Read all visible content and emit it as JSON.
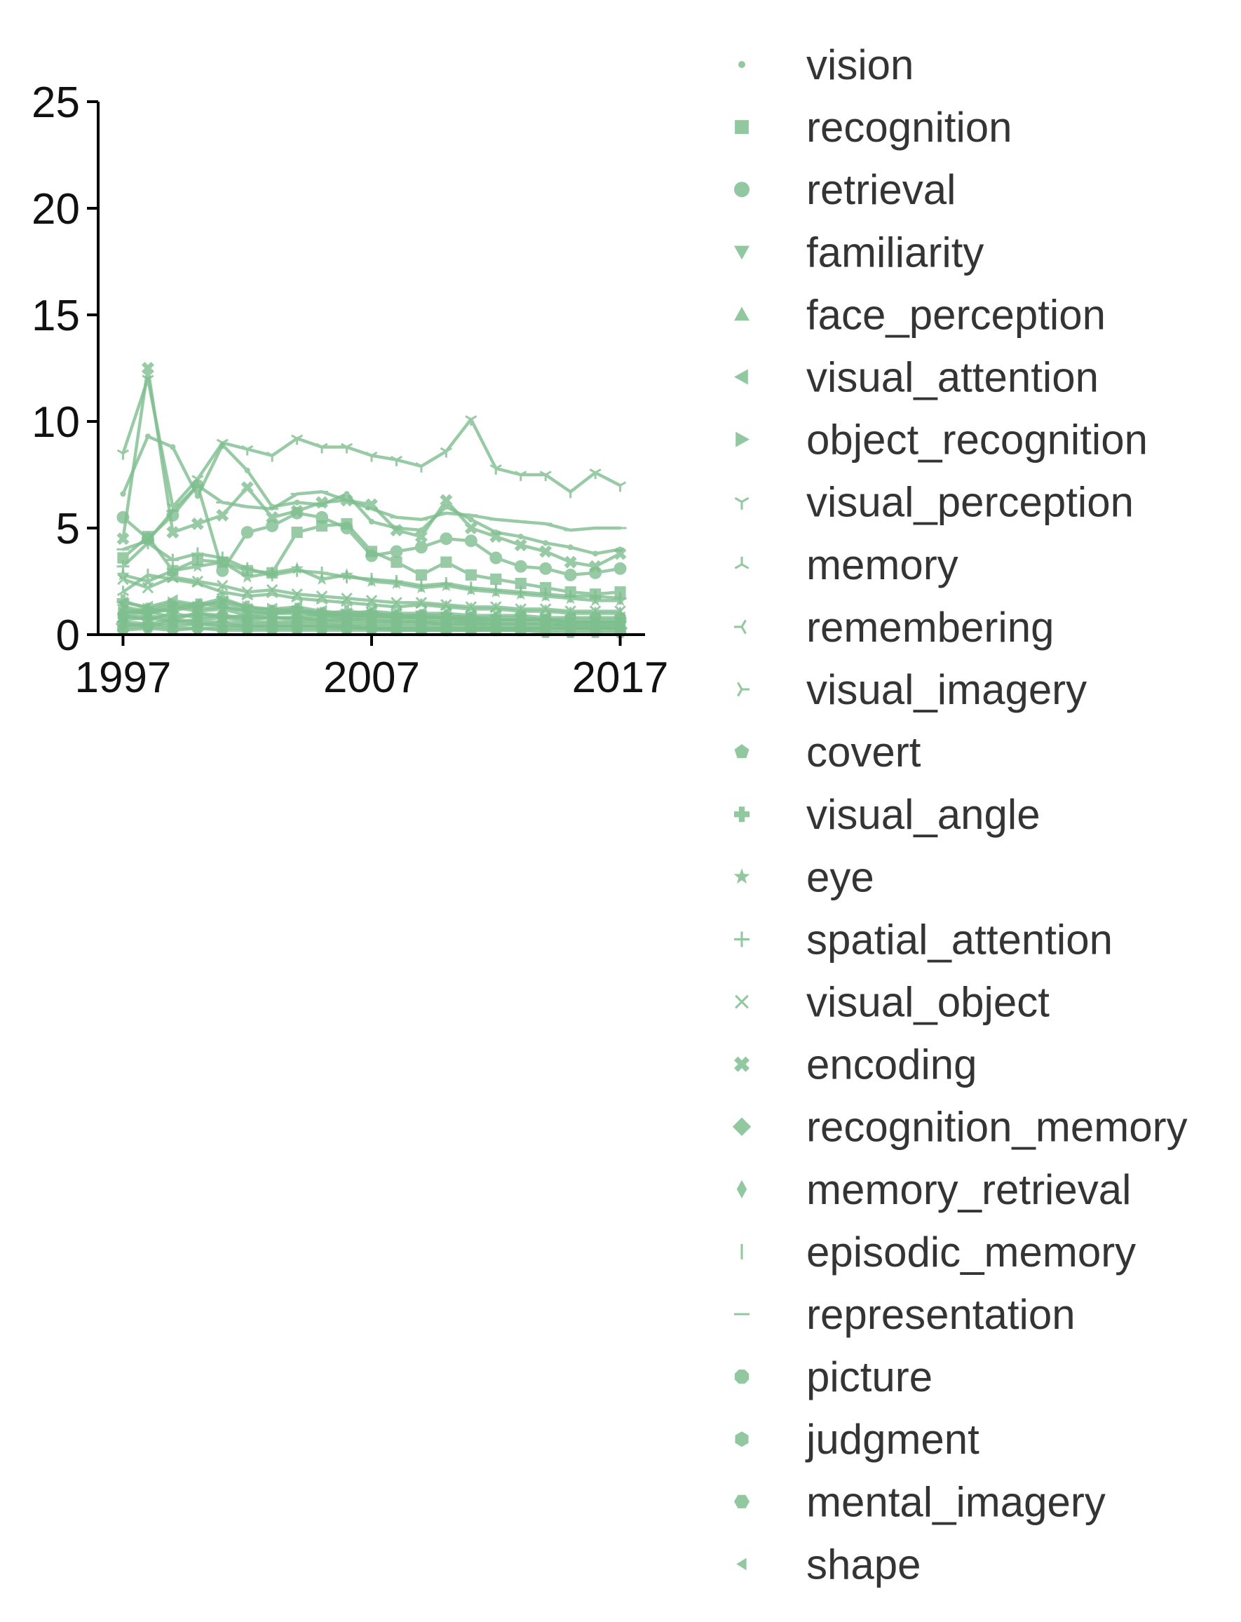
{
  "chart_data": {
    "type": "line",
    "title": "",
    "xlabel": "",
    "ylabel": "",
    "xlim": [
      1996,
      2018
    ],
    "ylim": [
      0,
      25
    ],
    "x_ticks": [
      1997,
      2007,
      2017
    ],
    "y_ticks": [
      0,
      5,
      10,
      15,
      20,
      25
    ],
    "grid": false,
    "legend_position": "right",
    "series_color": "#7fbf8f",
    "x": [
      1997,
      1998,
      1999,
      2000,
      2001,
      2002,
      2003,
      2004,
      2005,
      2006,
      2007,
      2008,
      2009,
      2010,
      2011,
      2012,
      2013,
      2014,
      2015,
      2016,
      2017
    ],
    "series": [
      {
        "name": "vision",
        "marker": "point",
        "values": [
          6.6,
          9.3,
          8.8,
          6.5,
          8.9,
          7.7,
          6.0,
          6.2,
          6.1,
          6.6,
          5.3,
          5.0,
          4.9,
          6.0,
          5.4,
          4.8,
          4.6,
          4.3,
          4.1,
          3.8,
          4.0
        ]
      },
      {
        "name": "recognition",
        "marker": "square",
        "values": [
          3.6,
          4.6,
          3.0,
          3.5,
          3.4,
          3.0,
          2.9,
          4.8,
          5.1,
          5.2,
          3.9,
          3.4,
          2.8,
          3.4,
          2.8,
          2.6,
          2.4,
          2.2,
          2.0,
          1.9,
          2.0
        ]
      },
      {
        "name": "retrieval",
        "marker": "circle",
        "values": [
          5.5,
          4.5,
          5.6,
          7.0,
          3.0,
          4.8,
          5.1,
          5.7,
          5.5,
          5.0,
          3.7,
          3.9,
          4.1,
          4.5,
          4.4,
          3.6,
          3.2,
          3.1,
          2.8,
          2.9,
          3.1
        ]
      },
      {
        "name": "familiarity",
        "marker": "triangle-down",
        "values": [
          1.2,
          1.0,
          1.3,
          1.1,
          1.2,
          0.9,
          1.0,
          1.1,
          0.9,
          0.8,
          0.9,
          0.8,
          0.9,
          0.8,
          0.8,
          0.7,
          0.7,
          0.7,
          0.6,
          0.6,
          0.6
        ]
      },
      {
        "name": "face_perception",
        "marker": "triangle-up",
        "values": [
          0.8,
          0.9,
          0.7,
          1.0,
          0.8,
          0.9,
          0.8,
          0.8,
          0.9,
          0.7,
          0.8,
          0.7,
          0.7,
          0.7,
          0.6,
          0.6,
          0.6,
          0.6,
          0.5,
          0.5,
          0.5
        ]
      },
      {
        "name": "visual_attention",
        "marker": "triangle-left",
        "values": [
          1.5,
          1.3,
          1.6,
          1.4,
          1.5,
          1.2,
          1.2,
          1.3,
          1.1,
          1.0,
          1.1,
          1.0,
          1.0,
          1.0,
          0.9,
          0.9,
          0.9,
          0.8,
          0.8,
          0.8,
          0.8
        ]
      },
      {
        "name": "object_recognition",
        "marker": "triangle-right",
        "values": [
          1.0,
          1.2,
          1.5,
          1.3,
          1.6,
          1.3,
          1.2,
          1.1,
          1.0,
          0.9,
          1.0,
          0.9,
          0.8,
          0.8,
          0.8,
          0.7,
          0.7,
          0.7,
          0.6,
          0.6,
          0.6
        ]
      },
      {
        "name": "visual_perception",
        "marker": "tri-down",
        "values": [
          8.5,
          12.0,
          6.0,
          7.3,
          9.0,
          8.7,
          8.4,
          9.2,
          8.8,
          8.8,
          8.4,
          8.2,
          7.9,
          8.6,
          10.1,
          7.8,
          7.5,
          7.5,
          6.7,
          7.6,
          7.0
        ]
      },
      {
        "name": "memory",
        "marker": "tri-up",
        "values": [
          2.0,
          2.8,
          2.6,
          2.4,
          2.0,
          1.8,
          1.9,
          1.7,
          1.6,
          1.5,
          1.4,
          1.3,
          1.4,
          1.3,
          1.2,
          1.2,
          1.1,
          1.1,
          1.0,
          1.0,
          1.0
        ]
      },
      {
        "name": "remembering",
        "marker": "tri-left",
        "values": [
          0.6,
          0.5,
          0.7,
          0.6,
          0.6,
          0.5,
          0.5,
          0.5,
          0.5,
          0.4,
          0.4,
          0.4,
          0.4,
          0.4,
          0.4,
          0.3,
          0.3,
          0.3,
          0.3,
          0.3,
          0.3
        ]
      },
      {
        "name": "visual_imagery",
        "marker": "tri-right",
        "values": [
          1.3,
          1.1,
          1.4,
          1.2,
          1.3,
          1.1,
          1.0,
          1.0,
          0.9,
          0.9,
          0.9,
          0.8,
          0.8,
          0.8,
          0.7,
          0.7,
          0.7,
          0.7,
          0.6,
          0.6,
          0.6
        ]
      },
      {
        "name": "covert",
        "marker": "pentagon",
        "values": [
          0.9,
          1.1,
          0.8,
          1.0,
          0.9,
          0.8,
          0.8,
          0.8,
          0.7,
          0.7,
          0.7,
          0.6,
          0.6,
          0.6,
          0.6,
          0.5,
          0.5,
          0.5,
          0.5,
          0.5,
          0.5
        ]
      },
      {
        "name": "visual_angle",
        "marker": "plus-filled",
        "values": [
          1.6,
          1.2,
          1.1,
          1.4,
          1.7,
          1.3,
          1.1,
          1.2,
          1.0,
          1.1,
          1.0,
          0.9,
          0.9,
          0.9,
          0.8,
          0.8,
          0.8,
          0.7,
          0.7,
          0.7,
          0.7
        ]
      },
      {
        "name": "eye",
        "marker": "star",
        "values": [
          2.8,
          2.5,
          3.0,
          3.2,
          3.4,
          2.7,
          2.9,
          3.1,
          2.6,
          2.8,
          2.5,
          2.4,
          2.2,
          2.3,
          2.1,
          2.0,
          1.9,
          1.8,
          1.7,
          1.6,
          1.6
        ]
      },
      {
        "name": "spatial_attention",
        "marker": "plus",
        "values": [
          3.2,
          4.3,
          3.5,
          3.8,
          3.6,
          3.1,
          2.8,
          3.0,
          2.9,
          2.7,
          2.6,
          2.5,
          2.3,
          2.4,
          2.2,
          2.1,
          2.0,
          1.9,
          1.8,
          1.8,
          1.7
        ]
      },
      {
        "name": "visual_object",
        "marker": "x",
        "values": [
          2.6,
          2.2,
          2.7,
          2.5,
          2.3,
          2.0,
          2.1,
          1.9,
          1.8,
          1.7,
          1.6,
          1.5,
          1.5,
          1.4,
          1.3,
          1.3,
          1.2,
          1.2,
          1.1,
          1.1,
          1.1
        ]
      },
      {
        "name": "encoding",
        "marker": "x-filled",
        "values": [
          4.5,
          12.5,
          4.8,
          5.2,
          5.6,
          6.9,
          5.5,
          5.8,
          6.2,
          6.3,
          6.1,
          4.9,
          4.6,
          6.3,
          5.0,
          4.6,
          4.2,
          3.9,
          3.4,
          3.2,
          3.8
        ]
      },
      {
        "name": "recognition_memory",
        "marker": "diamond",
        "values": [
          0.5,
          0.4,
          0.6,
          0.5,
          0.5,
          0.4,
          0.4,
          0.4,
          0.4,
          0.4,
          0.3,
          0.3,
          0.3,
          0.3,
          0.3,
          0.3,
          0.3,
          0.3,
          0.3,
          0.3,
          0.3
        ]
      },
      {
        "name": "memory_retrieval",
        "marker": "thin-diamond",
        "values": [
          0.7,
          0.8,
          0.6,
          0.7,
          0.8,
          0.6,
          0.6,
          0.6,
          0.6,
          0.5,
          0.5,
          0.5,
          0.5,
          0.5,
          0.5,
          0.4,
          0.4,
          0.4,
          0.4,
          0.4,
          0.4
        ]
      },
      {
        "name": "episodic_memory",
        "marker": "vline",
        "values": [
          0.4,
          0.5,
          0.4,
          0.5,
          0.4,
          0.4,
          0.4,
          0.4,
          0.4,
          0.3,
          0.3,
          0.3,
          0.3,
          0.3,
          0.3,
          0.3,
          0.3,
          0.3,
          0.3,
          0.3,
          0.3
        ]
      },
      {
        "name": "representation",
        "marker": "hline",
        "values": [
          4.0,
          4.4,
          5.8,
          7.0,
          6.2,
          6.0,
          5.9,
          6.6,
          6.7,
          6.3,
          5.9,
          5.5,
          5.4,
          5.7,
          5.6,
          5.4,
          5.3,
          5.2,
          4.9,
          5.0,
          5.0
        ]
      },
      {
        "name": "picture",
        "marker": "octagon",
        "values": [
          0.3,
          0.4,
          0.3,
          0.3,
          0.3,
          0.3,
          0.3,
          0.3,
          0.3,
          0.3,
          0.3,
          0.2,
          0.2,
          0.2,
          0.2,
          0.2,
          0.2,
          0.2,
          0.2,
          0.2,
          0.2
        ]
      },
      {
        "name": "judgment",
        "marker": "hexagon",
        "values": [
          0.9,
          0.7,
          1.0,
          0.8,
          0.9,
          0.7,
          0.8,
          0.7,
          0.7,
          0.6,
          0.6,
          0.6,
          0.6,
          0.5,
          0.5,
          0.5,
          0.5,
          0.5,
          0.4,
          0.4,
          0.4
        ]
      },
      {
        "name": "mental_imagery",
        "marker": "hexagon-flat",
        "values": [
          0.2,
          0.3,
          0.2,
          0.3,
          0.2,
          0.2,
          0.2,
          0.2,
          0.2,
          0.2,
          0.2,
          0.2,
          0.2,
          0.2,
          0.2,
          0.2,
          0.2,
          0.1,
          0.1,
          0.1,
          0.1
        ]
      },
      {
        "name": "shape",
        "marker": "caret-left",
        "values": [
          1.1,
          1.0,
          1.2,
          1.5,
          1.3,
          1.1,
          1.0,
          1.1,
          1.0,
          0.9,
          0.9,
          0.8,
          0.8,
          0.8,
          0.7,
          0.7,
          0.7,
          0.7,
          0.6,
          0.6,
          0.6
        ]
      }
    ]
  }
}
